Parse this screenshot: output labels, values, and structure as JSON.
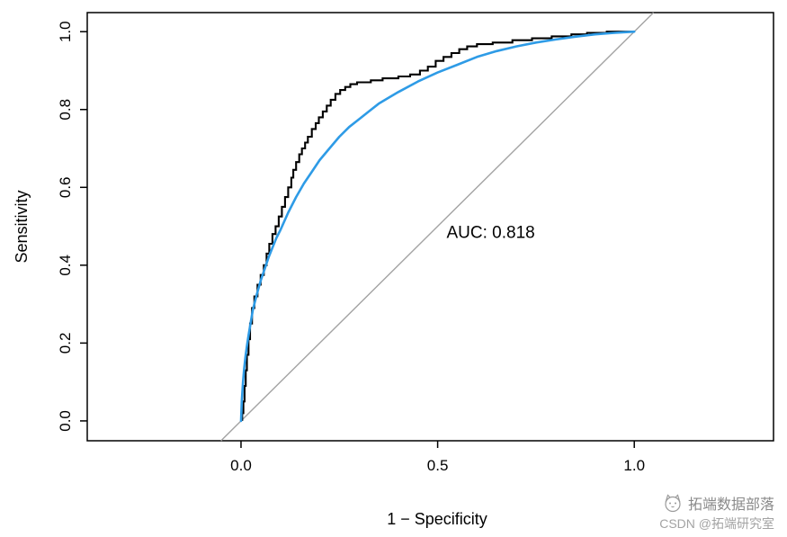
{
  "chart_data": {
    "type": "line",
    "title": "",
    "xlabel": "1 − Specificity",
    "ylabel": "Sensitivity",
    "xlim": [
      0,
      1
    ],
    "ylim": [
      0,
      1
    ],
    "view_x": [
      -0.391,
      1.354
    ],
    "view_y": [
      -0.051,
      1.049
    ],
    "grid": false,
    "legend": "none",
    "x_ticks": [
      0.0,
      0.5,
      1.0
    ],
    "x_tick_labels": [
      "0.0",
      "0.5",
      "1.0"
    ],
    "y_ticks": [
      0.0,
      0.2,
      0.4,
      0.6,
      0.8,
      1.0
    ],
    "y_tick_labels": [
      "0.0",
      "0.2",
      "0.4",
      "0.6",
      "0.8",
      "1.0"
    ],
    "auc": 0.818,
    "annotation": {
      "text": "AUC: 0.818",
      "x": 0.635,
      "y": 0.47
    },
    "series": [
      {
        "name": "chance-reference-line",
        "color": "#a3a3a3",
        "width": 1.4,
        "style": "straight",
        "points": [
          [
            -0.051,
            -0.051
          ],
          [
            1.049,
            1.049
          ]
        ]
      },
      {
        "name": "empirical-roc",
        "color": "#000000",
        "width": 2.1,
        "style": "step",
        "points": [
          [
            0.003,
            0.0
          ],
          [
            0.003,
            0.02
          ],
          [
            0.006,
            0.02
          ],
          [
            0.006,
            0.05
          ],
          [
            0.009,
            0.05
          ],
          [
            0.009,
            0.09
          ],
          [
            0.012,
            0.09
          ],
          [
            0.012,
            0.13
          ],
          [
            0.015,
            0.13
          ],
          [
            0.015,
            0.17
          ],
          [
            0.019,
            0.17
          ],
          [
            0.019,
            0.21
          ],
          [
            0.023,
            0.21
          ],
          [
            0.023,
            0.25
          ],
          [
            0.028,
            0.25
          ],
          [
            0.028,
            0.29
          ],
          [
            0.034,
            0.29
          ],
          [
            0.034,
            0.32
          ],
          [
            0.042,
            0.32
          ],
          [
            0.042,
            0.35
          ],
          [
            0.05,
            0.35
          ],
          [
            0.05,
            0.375
          ],
          [
            0.058,
            0.375
          ],
          [
            0.058,
            0.4
          ],
          [
            0.065,
            0.4
          ],
          [
            0.065,
            0.43
          ],
          [
            0.072,
            0.43
          ],
          [
            0.072,
            0.455
          ],
          [
            0.08,
            0.455
          ],
          [
            0.08,
            0.48
          ],
          [
            0.088,
            0.48
          ],
          [
            0.088,
            0.5
          ],
          [
            0.096,
            0.5
          ],
          [
            0.096,
            0.525
          ],
          [
            0.104,
            0.525
          ],
          [
            0.104,
            0.55
          ],
          [
            0.112,
            0.55
          ],
          [
            0.112,
            0.575
          ],
          [
            0.12,
            0.575
          ],
          [
            0.12,
            0.6
          ],
          [
            0.128,
            0.6
          ],
          [
            0.128,
            0.625
          ],
          [
            0.133,
            0.625
          ],
          [
            0.133,
            0.645
          ],
          [
            0.14,
            0.645
          ],
          [
            0.14,
            0.665
          ],
          [
            0.148,
            0.665
          ],
          [
            0.148,
            0.685
          ],
          [
            0.155,
            0.685
          ],
          [
            0.155,
            0.7
          ],
          [
            0.163,
            0.7
          ],
          [
            0.163,
            0.715
          ],
          [
            0.17,
            0.715
          ],
          [
            0.17,
            0.73
          ],
          [
            0.18,
            0.73
          ],
          [
            0.18,
            0.75
          ],
          [
            0.19,
            0.75
          ],
          [
            0.19,
            0.765
          ],
          [
            0.198,
            0.765
          ],
          [
            0.198,
            0.78
          ],
          [
            0.208,
            0.78
          ],
          [
            0.208,
            0.795
          ],
          [
            0.218,
            0.795
          ],
          [
            0.218,
            0.81
          ],
          [
            0.228,
            0.81
          ],
          [
            0.228,
            0.825
          ],
          [
            0.24,
            0.825
          ],
          [
            0.24,
            0.84
          ],
          [
            0.252,
            0.84
          ],
          [
            0.252,
            0.85
          ],
          [
            0.265,
            0.85
          ],
          [
            0.265,
            0.858
          ],
          [
            0.278,
            0.858
          ],
          [
            0.278,
            0.865
          ],
          [
            0.295,
            0.865
          ],
          [
            0.295,
            0.87
          ],
          [
            0.33,
            0.87
          ],
          [
            0.33,
            0.875
          ],
          [
            0.36,
            0.875
          ],
          [
            0.36,
            0.88
          ],
          [
            0.4,
            0.88
          ],
          [
            0.4,
            0.885
          ],
          [
            0.43,
            0.885
          ],
          [
            0.43,
            0.89
          ],
          [
            0.455,
            0.89
          ],
          [
            0.455,
            0.9
          ],
          [
            0.475,
            0.9
          ],
          [
            0.475,
            0.91
          ],
          [
            0.495,
            0.91
          ],
          [
            0.495,
            0.925
          ],
          [
            0.515,
            0.925
          ],
          [
            0.515,
            0.935
          ],
          [
            0.535,
            0.935
          ],
          [
            0.535,
            0.945
          ],
          [
            0.555,
            0.945
          ],
          [
            0.555,
            0.955
          ],
          [
            0.575,
            0.955
          ],
          [
            0.575,
            0.962
          ],
          [
            0.6,
            0.962
          ],
          [
            0.6,
            0.968
          ],
          [
            0.64,
            0.968
          ],
          [
            0.64,
            0.972
          ],
          [
            0.69,
            0.972
          ],
          [
            0.69,
            0.978
          ],
          [
            0.74,
            0.978
          ],
          [
            0.74,
            0.983
          ],
          [
            0.79,
            0.983
          ],
          [
            0.79,
            0.988
          ],
          [
            0.84,
            0.988
          ],
          [
            0.84,
            0.993
          ],
          [
            0.88,
            0.993
          ],
          [
            0.88,
            0.997
          ],
          [
            0.93,
            0.997
          ],
          [
            0.93,
            1.0
          ],
          [
            1.0,
            1.0
          ]
        ]
      },
      {
        "name": "smoothed-roc",
        "color": "#2e9be6",
        "width": 2.6,
        "style": "smooth",
        "points": [
          [
            0.0,
            0.0
          ],
          [
            0.002,
            0.05
          ],
          [
            0.005,
            0.1
          ],
          [
            0.008,
            0.135
          ],
          [
            0.012,
            0.17
          ],
          [
            0.016,
            0.2
          ],
          [
            0.02,
            0.225
          ],
          [
            0.03,
            0.285
          ],
          [
            0.04,
            0.325
          ],
          [
            0.05,
            0.36
          ],
          [
            0.06,
            0.39
          ],
          [
            0.07,
            0.42
          ],
          [
            0.08,
            0.445
          ],
          [
            0.09,
            0.47
          ],
          [
            0.1,
            0.49
          ],
          [
            0.12,
            0.535
          ],
          [
            0.14,
            0.575
          ],
          [
            0.16,
            0.61
          ],
          [
            0.18,
            0.64
          ],
          [
            0.2,
            0.67
          ],
          [
            0.225,
            0.7
          ],
          [
            0.25,
            0.73
          ],
          [
            0.275,
            0.755
          ],
          [
            0.3,
            0.775
          ],
          [
            0.325,
            0.795
          ],
          [
            0.35,
            0.815
          ],
          [
            0.375,
            0.83
          ],
          [
            0.4,
            0.845
          ],
          [
            0.45,
            0.872
          ],
          [
            0.5,
            0.895
          ],
          [
            0.55,
            0.915
          ],
          [
            0.6,
            0.935
          ],
          [
            0.65,
            0.95
          ],
          [
            0.7,
            0.962
          ],
          [
            0.75,
            0.972
          ],
          [
            0.8,
            0.98
          ],
          [
            0.85,
            0.987
          ],
          [
            0.9,
            0.993
          ],
          [
            0.95,
            0.997
          ],
          [
            1.0,
            1.0
          ]
        ]
      }
    ]
  },
  "colors": {
    "plot_border": "#000000",
    "background": "#ffffff",
    "smooth_curve": "#2e9be6",
    "reference_line": "#a3a3a3",
    "watermark_text": "#8a8a8a"
  },
  "watermark": {
    "line1": "拓端数据部落",
    "line2": "CSDN @拓端研究室",
    "logo": "cat-logo"
  }
}
